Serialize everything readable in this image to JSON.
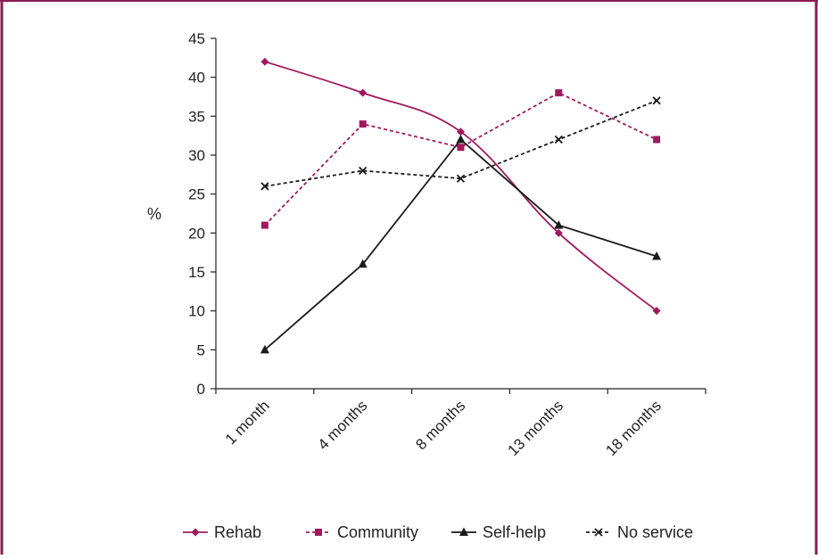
{
  "chart_data": {
    "type": "line",
    "title": "",
    "xlabel": "",
    "ylabel": "%",
    "categories": [
      "1 month",
      "4 months",
      "8 months",
      "13 months",
      "18 months"
    ],
    "ylim": [
      0,
      45
    ],
    "yticks": [
      "0",
      "5",
      "10",
      "15",
      "20",
      "25",
      "30",
      "35",
      "40",
      "45"
    ],
    "grid": false,
    "legend_position": "bottom",
    "series": [
      {
        "name": "Rehab",
        "values": [
          42,
          38,
          33,
          20,
          10
        ],
        "color": "#a0195e",
        "marker": "diamond",
        "dashed": false,
        "smooth": true
      },
      {
        "name": "Community",
        "values": [
          21,
          34,
          31,
          38,
          32
        ],
        "color": "#a0195e",
        "marker": "square",
        "dashed": true,
        "smooth": false
      },
      {
        "name": "Self-help",
        "values": [
          5,
          16,
          32,
          21,
          17
        ],
        "color": "#1a1a1a",
        "marker": "triangle",
        "dashed": false,
        "smooth": false
      },
      {
        "name": "No service",
        "values": [
          26,
          28,
          27,
          32,
          37
        ],
        "color": "#1a1a1a",
        "marker": "x",
        "dashed": true,
        "smooth": false
      }
    ],
    "frame_color": "#8a1a52"
  }
}
